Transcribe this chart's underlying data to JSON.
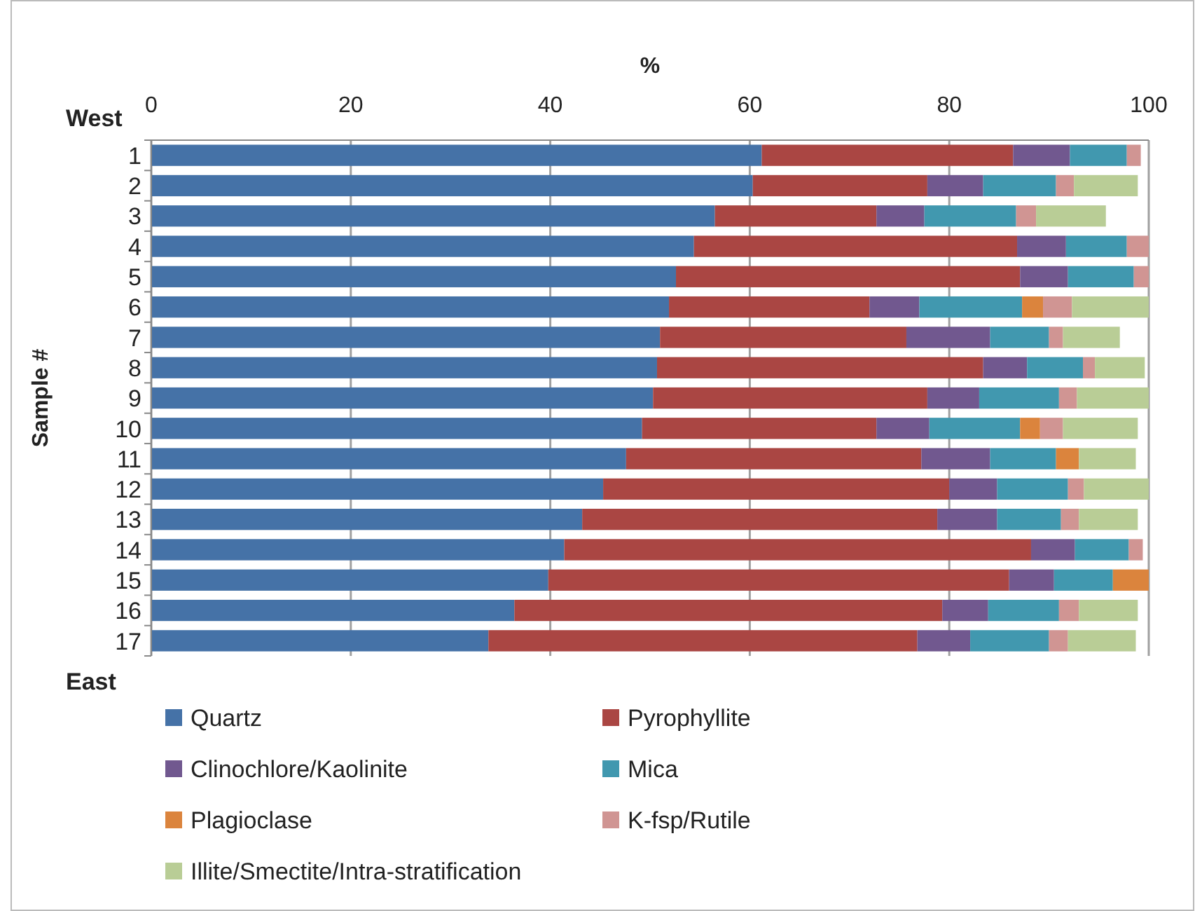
{
  "chart_data": {
    "type": "bar",
    "orientation": "horizontal",
    "stacked": true,
    "xlabel": "%",
    "ylabel": "Sample #",
    "annotations": [
      "West",
      "East"
    ],
    "categories": [
      "1",
      "2",
      "3",
      "4",
      "5",
      "6",
      "7",
      "8",
      "9",
      "10",
      "11",
      "12",
      "13",
      "14",
      "15",
      "16",
      "17"
    ],
    "xlim": [
      0,
      100
    ],
    "xticks": [
      0,
      20,
      40,
      60,
      80,
      100
    ],
    "grid": "x",
    "legend": "bottom",
    "series": [
      {
        "name": "Quartz",
        "color": "#4572a7",
        "values": [
          61.2,
          60.3,
          56.5,
          54.4,
          52.6,
          51.9,
          51.0,
          50.7,
          50.3,
          49.2,
          47.6,
          45.3,
          43.2,
          41.4,
          39.8,
          36.4,
          33.8
        ]
      },
      {
        "name": "Pyrophyllite",
        "color": "#aa4643",
        "values": [
          25.2,
          17.5,
          16.2,
          32.4,
          34.5,
          20.1,
          24.7,
          32.7,
          27.5,
          23.5,
          29.6,
          34.7,
          35.6,
          46.8,
          46.2,
          42.9,
          43.0
        ]
      },
      {
        "name": "Clinochlore/Kaolinite",
        "color": "#71588f",
        "values": [
          5.7,
          5.6,
          4.8,
          4.9,
          4.8,
          5.0,
          8.4,
          4.4,
          5.2,
          5.3,
          6.9,
          4.8,
          6.0,
          4.4,
          4.5,
          4.6,
          5.3
        ]
      },
      {
        "name": "Mica",
        "color": "#4198af",
        "values": [
          5.7,
          7.3,
          9.2,
          6.1,
          6.6,
          10.3,
          5.9,
          5.6,
          8.0,
          9.1,
          6.6,
          7.1,
          6.4,
          5.4,
          5.9,
          7.1,
          7.9
        ]
      },
      {
        "name": "Plagioclase",
        "color": "#db843d",
        "values": [
          null,
          null,
          null,
          null,
          null,
          2.1,
          null,
          null,
          null,
          2.0,
          2.3,
          null,
          null,
          null,
          3.6,
          null,
          null
        ]
      },
      {
        "name": "K-fsp/Rutile",
        "color": "#d09593",
        "values": [
          1.4,
          1.8,
          2.0,
          2.2,
          1.5,
          2.9,
          1.4,
          1.2,
          1.8,
          2.3,
          null,
          1.6,
          1.8,
          1.4,
          null,
          2.0,
          1.9
        ]
      },
      {
        "name": "Illite/Smectite/Intra-stratification",
        "color": "#b9cd96",
        "values": [
          null,
          6.4,
          7.0,
          null,
          null,
          7.7,
          5.7,
          5.0,
          7.2,
          7.5,
          5.7,
          6.5,
          5.9,
          null,
          null,
          5.9,
          6.8
        ]
      }
    ]
  }
}
